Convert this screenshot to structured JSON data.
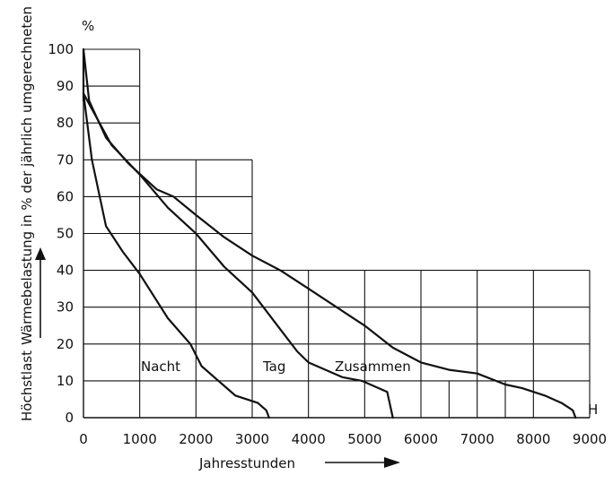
{
  "chart_data": {
    "type": "line",
    "title": "",
    "xlabel": "Jahresstunden",
    "ylabel_line1": "Wärmebelastung in % der jährlich umgerechneten",
    "ylabel_line2": "Höchstlast",
    "y_unit": "%",
    "x_unit": "H",
    "xlim": [
      0,
      9000
    ],
    "ylim": [
      0,
      100
    ],
    "x_ticks": [
      "0",
      "1000",
      "2000",
      "3000",
      "4000",
      "5000",
      "6000",
      "7000",
      "8000",
      "9000"
    ],
    "y_ticks": [
      "0",
      "10",
      "20",
      "30",
      "40",
      "50",
      "60",
      "70",
      "80",
      "90",
      "100"
    ],
    "grid": true,
    "series": [
      {
        "name": "Nacht",
        "x": [
          0,
          150,
          400,
          700,
          1000,
          1500,
          1900,
          2100,
          2400,
          2700,
          3100,
          3250,
          3300
        ],
        "y": [
          88,
          70,
          52,
          45,
          39,
          27,
          20,
          14,
          10,
          6,
          4,
          2,
          0
        ]
      },
      {
        "name": "Tag",
        "x": [
          0,
          500,
          1000,
          1500,
          2000,
          2500,
          3000,
          3500,
          3800,
          4000,
          4600,
          4950,
          5100,
          5400,
          5500
        ],
        "y": [
          88,
          74,
          66,
          57,
          50,
          41,
          34,
          24,
          18,
          15,
          11,
          10,
          9,
          7,
          0
        ]
      },
      {
        "name": "Zusammen",
        "x": [
          0,
          100,
          400,
          800,
          1300,
          1600,
          2000,
          2500,
          3000,
          3500,
          4000,
          4500,
          5000,
          5500,
          6000,
          6500,
          7000,
          7500,
          7800,
          8200,
          8500,
          8700,
          8750
        ],
        "y": [
          100,
          86,
          76,
          69,
          62,
          60,
          55,
          49,
          44,
          40,
          35,
          30,
          25,
          19,
          15,
          13,
          12,
          9,
          8,
          6,
          4,
          2,
          0
        ]
      }
    ],
    "annotations": [
      "Nacht",
      "Tag",
      "Zusammen"
    ]
  }
}
